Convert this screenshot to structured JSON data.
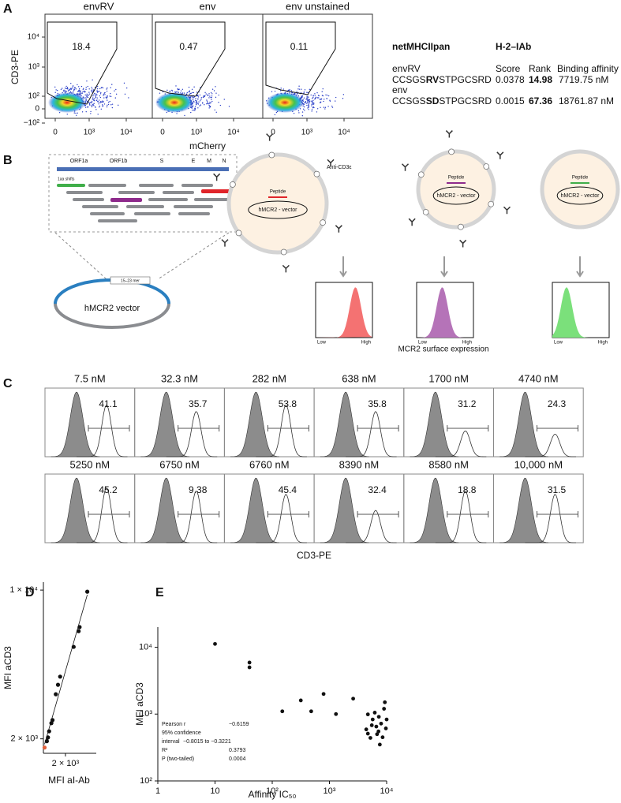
{
  "panel_labels": [
    "A",
    "B",
    "C",
    "D",
    "E"
  ],
  "panel_a": {
    "plots": [
      {
        "title": "envRV",
        "gate": "18.4"
      },
      {
        "title": "env",
        "gate": "0.47"
      },
      {
        "title": "env unstained",
        "gate": "0.11"
      }
    ],
    "y_label": "CD3-PE",
    "x_label": "mCherry",
    "yticks": [
      "10⁴",
      "10³",
      "10²",
      "0",
      "−10²"
    ],
    "xticks": [
      "0",
      "10³",
      "10⁴"
    ],
    "table": {
      "tool": "netMHCIIpan",
      "allele": "H-2–IAb",
      "columns": [
        "Score",
        "Rank",
        "Binding affinity"
      ],
      "rows": [
        {
          "name": "envRV",
          "sequence": [
            "CCSGS",
            "RV",
            "STPGCSRD"
          ],
          "score": "0.0378",
          "rank": "14.98",
          "affinity": "7719.75 nM"
        },
        {
          "name": "env",
          "sequence": [
            "CCSGS",
            "SD",
            "STPGCSRD"
          ],
          "score": "0.0015",
          "rank": "67.36",
          "affinity": "18761.87 nM"
        }
      ]
    }
  },
  "panel_b": {
    "genes": [
      "ORF1a",
      "ORF1b",
      "S",
      "E",
      "M",
      "N"
    ],
    "shift_label": "1aa shifts",
    "insert_label": "15–23 mer",
    "vector_label": "hMCR2 vector",
    "antibody_label": "Anti-CD3ε",
    "cells": [
      {
        "peptide": "Peptide",
        "vector": "hMCR2 - vector",
        "low": "Low",
        "high": "High"
      },
      {
        "peptide": "Peptide",
        "vector": "hMCR2 - vector",
        "low": "Low",
        "high": "High"
      },
      {
        "peptide": "Peptide",
        "vector": "hMCR2 - vector",
        "low": "Low",
        "high": "High"
      }
    ],
    "x_label": "MCR2 surface expression"
  },
  "panel_c": {
    "rows": [
      [
        {
          "title": "7.5 nM",
          "gate": "41.1"
        },
        {
          "title": "32.3 nM",
          "gate": "35.7"
        },
        {
          "title": "282 nM",
          "gate": "53.8"
        },
        {
          "title": "638 nM",
          "gate": "35.8"
        },
        {
          "title": "1700 nM",
          "gate": "31.2"
        },
        {
          "title": "4740 nM",
          "gate": "24.3"
        }
      ],
      [
        {
          "title": "5250 nM",
          "gate": "45.2"
        },
        {
          "title": "6750 nM",
          "gate": "9.38"
        },
        {
          "title": "6760 nM",
          "gate": "45.4"
        },
        {
          "title": "8390 nM",
          "gate": "32.4"
        },
        {
          "title": "8580 nM",
          "gate": "18.8"
        },
        {
          "title": "10,000 nM",
          "gate": "31.5"
        }
      ]
    ],
    "x_label": "CD3-PE"
  },
  "panel_d": {
    "type": "scatter",
    "x_label": "MFI aI-Ab",
    "y_label": "MFI aCD3",
    "log_x": true,
    "log_y": true,
    "xlim": [
      1800,
      2300
    ],
    "ylim": [
      1710,
      10900
    ],
    "xticks": [
      {
        "value": 2000,
        "label": "2 × 10³"
      }
    ],
    "yticks": [
      {
        "value": 10000,
        "label": "1 × 10⁴"
      },
      {
        "value": 2000,
        "label": "2 × 10³"
      }
    ],
    "series": [
      {
        "color": "#111111",
        "x": [
          1830,
          1840,
          1850,
          1870,
          1880,
          1910,
          1930,
          1950,
          2080,
          2130,
          2140,
          2220
        ],
        "y": [
          1950,
          2030,
          2170,
          2370,
          2450,
          3240,
          3590,
          3920,
          5410,
          6410,
          6700,
          9830
        ]
      },
      {
        "color": "#e0603c",
        "x": [
          1810
        ],
        "y": [
          1820
        ]
      }
    ],
    "fit_line": true
  },
  "panel_e": {
    "type": "scatter",
    "x_label": "Affinity IC₅₀",
    "y_label": "MFI aCD3",
    "log_x": true,
    "log_y": true,
    "xlim": [
      1,
      10000
    ],
    "ylim": [
      100,
      20000
    ],
    "xticks": [
      1,
      10,
      {
        "value": 100,
        "label": "10²"
      },
      {
        "value": 1000,
        "label": "10³"
      },
      {
        "value": 10000,
        "label": "10⁴"
      }
    ],
    "yticks": [
      {
        "value": 100,
        "label": "10²"
      },
      {
        "value": 1000,
        "label": "10³"
      },
      {
        "value": 10000,
        "label": "10⁴"
      }
    ],
    "series": [
      {
        "color": "#111111",
        "x": [
          10,
          40,
          40,
          150,
          316,
          480,
          790,
          1300,
          2600,
          9300,
          9000,
          6200,
          4700,
          7300,
          10000,
          5500,
          8000,
          5700,
          6600,
          4400,
          9700,
          6800,
          8500,
          5200,
          7600,
          4700,
          7200
        ],
        "y": [
          11200,
          5900,
          5000,
          1100,
          1600,
          1100,
          2000,
          1000,
          1700,
          1500,
          1200,
          1050,
          990,
          910,
          830,
          680,
          720,
          830,
          650,
          590,
          610,
          500,
          450,
          440,
          350,
          510,
          550
        ]
      }
    ],
    "stats": {
      "pearson_label": "Pearson r",
      "pearson": "−0.6159",
      "ci_label_1": "95% confidence",
      "ci_label_2": "interval",
      "ci": "−0.8015 to −0.3221",
      "r2_label": "R²",
      "r2": "0.3793",
      "p_label": "P (two-tailed)",
      "p": "0.0004"
    }
  }
}
